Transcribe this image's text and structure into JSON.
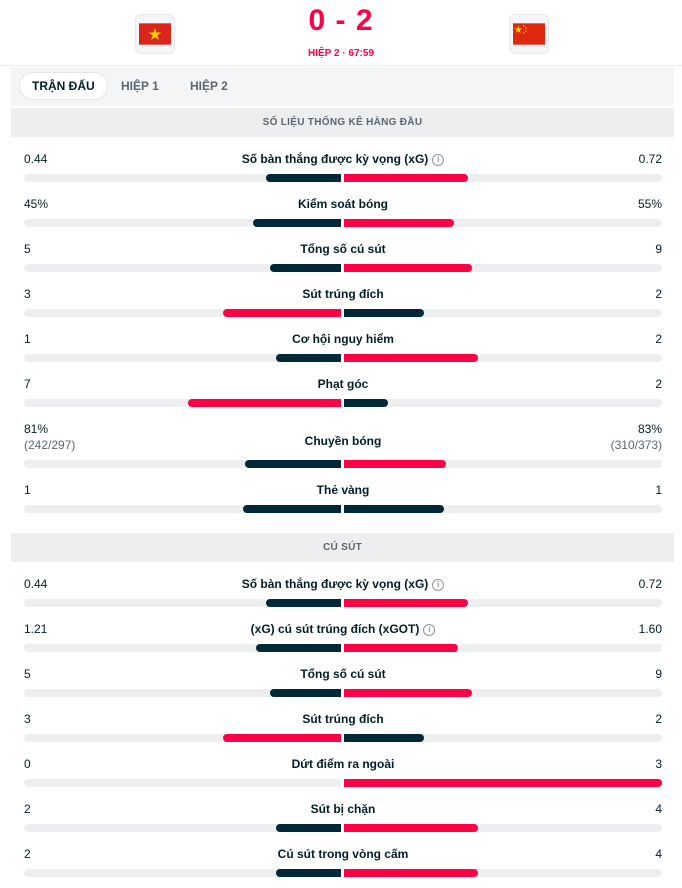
{
  "match": {
    "score": "0 - 2",
    "period": "HIỆP 2 · 67:59",
    "home_team": {
      "name": "Việt Nam",
      "flag_icon": "vietnam-flag-icon"
    },
    "away_team": {
      "name": "Trung Quốc",
      "flag_icon": "china-flag-icon"
    }
  },
  "colors": {
    "better": "#ff0046",
    "worse": "#002837",
    "track": "#eceef0"
  },
  "tabs": [
    {
      "label": "TRẬN ĐẤU",
      "active": true
    },
    {
      "label": "HIỆP 1",
      "active": false
    },
    {
      "label": "HIỆP 2",
      "active": false
    }
  ],
  "sections": [
    {
      "title": "SỐ LIỆU THỐNG KÊ HÀNG ĐẦU",
      "stats": [
        {
          "label": "Số bàn thắng được kỳ vọng (xG)",
          "info": true,
          "home": "0.44",
          "away": "0.72",
          "home_share": 0.38,
          "away_share": 0.62,
          "home_better": false
        },
        {
          "label": "Kiểm soát bóng",
          "home": "45%",
          "away": "55%",
          "home_share": 0.45,
          "away_share": 0.55,
          "home_better": false
        },
        {
          "label": "Tổng số cú sút",
          "home": "5",
          "away": "9",
          "home_share": 0.36,
          "away_share": 0.64,
          "home_better": false
        },
        {
          "label": "Sút trúng đích",
          "home": "3",
          "away": "2",
          "home_share": 0.6,
          "away_share": 0.4,
          "home_better": true
        },
        {
          "label": "Cơ hội nguy hiểm",
          "home": "1",
          "away": "2",
          "home_share": 0.33,
          "away_share": 0.67,
          "home_better": false
        },
        {
          "label": "Phạt góc",
          "home": "7",
          "away": "2",
          "home_share": 0.78,
          "away_share": 0.22,
          "home_better": true
        },
        {
          "label": "Chuyền bóng",
          "home": "81%",
          "away": "83%",
          "home_sub": "(242/297)",
          "away_sub": "(310/373)",
          "home_share": 0.49,
          "away_share": 0.51,
          "home_better": false
        },
        {
          "label": "Thẻ vàng",
          "home": "1",
          "away": "1",
          "home_share": 0.5,
          "away_share": 0.5,
          "home_better": null
        }
      ]
    },
    {
      "title": "CÚ SÚT",
      "stats": [
        {
          "label": "Số bàn thắng được kỳ vọng (xG)",
          "info": true,
          "home": "0.44",
          "away": "0.72",
          "home_share": 0.38,
          "away_share": 0.62,
          "home_better": false
        },
        {
          "label": "(xG) cú sút trúng đích (xGOT)",
          "info": true,
          "home": "1.21",
          "away": "1.60",
          "home_share": 0.43,
          "away_share": 0.57,
          "home_better": false
        },
        {
          "label": "Tổng số cú sút",
          "home": "5",
          "away": "9",
          "home_share": 0.36,
          "away_share": 0.64,
          "home_better": false
        },
        {
          "label": "Sút trúng đích",
          "home": "3",
          "away": "2",
          "home_share": 0.6,
          "away_share": 0.4,
          "home_better": true
        },
        {
          "label": "Dứt điểm ra ngoài",
          "home": "0",
          "away": "3",
          "home_share": 0.0,
          "away_share": 1.0,
          "home_better": false
        },
        {
          "label": "Sút bị chặn",
          "home": "2",
          "away": "4",
          "home_share": 0.33,
          "away_share": 0.67,
          "home_better": false
        },
        {
          "label": "Cú sút trong vòng cấm",
          "home": "2",
          "away": "4",
          "home_share": 0.33,
          "away_share": 0.67,
          "home_better": false
        }
      ]
    }
  ]
}
